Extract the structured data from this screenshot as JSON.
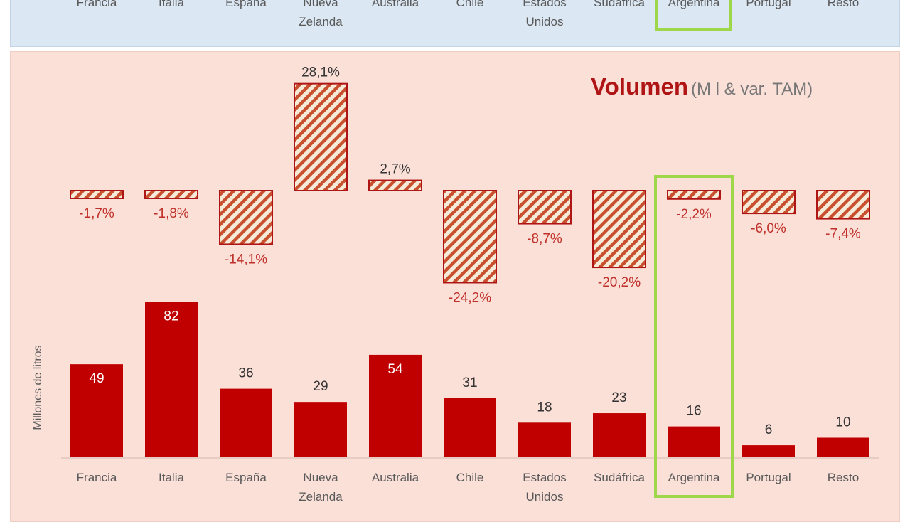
{
  "chart_data": {
    "type": "bar",
    "title": "Volumen",
    "subtitle": "(M l & var. TAM)",
    "ylabel": "Millones de litros",
    "categories": [
      [
        "Francia"
      ],
      [
        "Italia"
      ],
      [
        "España"
      ],
      [
        "Nueva",
        "Zelanda"
      ],
      [
        "Australia"
      ],
      [
        "Chile"
      ],
      [
        "Estados",
        "Unidos"
      ],
      [
        "Sudáfrica"
      ],
      [
        "Argentina"
      ],
      [
        "Portugal"
      ],
      [
        "Resto"
      ]
    ],
    "series": [
      {
        "values": [
          49,
          82,
          36,
          29,
          54,
          31,
          18,
          23,
          16,
          6,
          10
        ],
        "labels": [
          "49",
          "82",
          "36",
          "29",
          "54",
          "31",
          "18",
          "23",
          "16",
          "6",
          "10"
        ]
      },
      {
        "values": [
          -1.7,
          -1.8,
          -14.1,
          28.1,
          2.7,
          -24.2,
          -8.7,
          -20.2,
          -2.2,
          -6.0,
          -7.4
        ],
        "labels": [
          "-1,7%",
          "-1,8%",
          "-14,1%",
          "28,1%",
          "2,7%",
          "-24,2%",
          "-8,7%",
          "-20,2%",
          "-2,2%",
          "-6,0%",
          "-7,4%"
        ]
      }
    ],
    "highlight_category": "Argentina",
    "colors": {
      "volume_bar": "#c00000",
      "variation_border": "#b01515",
      "variation_hatch_a": "#c8502f",
      "variation_hatch_b": "#f6ead8",
      "highlight": "#9ed84a",
      "negative_label": "#c0302a",
      "positive_label": "#333333"
    }
  }
}
